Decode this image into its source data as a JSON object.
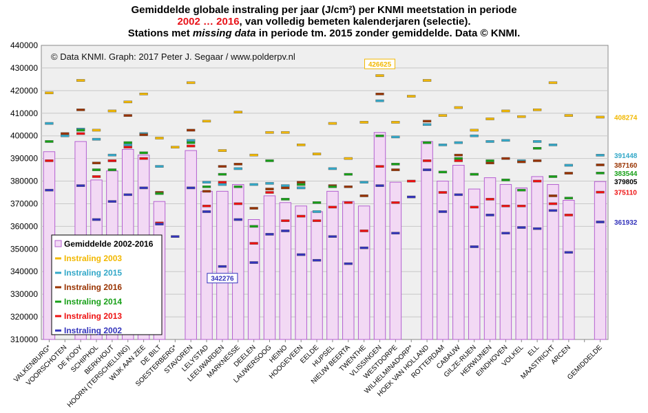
{
  "title": {
    "line1": "Gemiddelde globale instraling per jaar (J/cm²) per KNMI meetstation in periode",
    "line2_years": "2002 … 2016",
    "line2_rest": ", van volledig bemeten kalenderjaren (selectie).",
    "line3_a": "Stations met ",
    "line3_italic": "missing data",
    "line3_b": " in periode tm. 2015 zonder gemiddelde. Data © KNMI."
  },
  "credit": "© Data KNMI. Graph: 2017 Peter J. Segaar / www.polderpv.nl",
  "colors": {
    "avg_fill": "#f2d9f4",
    "avg_edge": "#b45fd0",
    "plot_bg": "#efefef",
    "2003": "#f2b800",
    "2015": "#33a8c8",
    "2016": "#993300",
    "2014": "#18a018",
    "2013": "#ee1111",
    "2002": "#3333bb"
  },
  "chart_data": {
    "type": "bar",
    "ylim": [
      310000,
      440000
    ],
    "yticks": [
      "310000",
      "320000",
      "330000",
      "340000",
      "350000",
      "360000",
      "370000",
      "380000",
      "390000",
      "400000",
      "410000",
      "420000",
      "430000",
      "440000"
    ],
    "categories": [
      "VALKENBURG*",
      "VOORSCHOTEN",
      "DE KOOY",
      "SCHIPHOL",
      "BERKHOUT",
      "HOORN (TERSCHELLING)",
      "WIJK AAN ZEE",
      "DE BILT",
      "SOESTERBERG*",
      "STAVOREN",
      "LELYSTAD",
      "LEEUWARDEN",
      "MARKNESSE",
      "DEELEN",
      "LAUWERSOOG",
      "HEINO",
      "HOOGEVEEN",
      "EELDE",
      "HUPSEL",
      "NIEUW BEERTA",
      "TWENTHE",
      "VLISSINGEN",
      "WESTDORPE",
      "WILHELMINADORP*",
      "HOEK VAN HOLLAND",
      "ROTTERDAM",
      "CABAUW",
      "GILZE-RIJEN",
      "HERWIJNEN",
      "EINDHOVEN",
      "VOLKEL",
      "ELL",
      "MAASTRICHT",
      "ARCEN",
      "",
      "GEMIDDELDE"
    ],
    "series": [
      {
        "name": "Gemiddelde 2002-2016",
        "key": "avg",
        "values": [
          393000,
          null,
          397500,
          380500,
          384500,
          394000,
          391500,
          371000,
          null,
          393500,
          375500,
          375500,
          378500,
          363000,
          373500,
          370500,
          369000,
          366500,
          375500,
          371000,
          369000,
          401500,
          379500,
          null,
          397500,
          380000,
          387000,
          376500,
          381500,
          378500,
          377000,
          382000,
          378500,
          371500,
          null,
          379805
        ]
      },
      {
        "name": "Instraling 2003",
        "key": "2003",
        "values": [
          419000,
          null,
          424500,
          402500,
          411000,
          415000,
          418500,
          399000,
          395000,
          423500,
          406500,
          393500,
          410500,
          391500,
          401500,
          401500,
          396000,
          392000,
          405500,
          390000,
          406000,
          426625,
          406000,
          417500,
          424500,
          409000,
          412500,
          402500,
          407500,
          411000,
          408500,
          411500,
          423500,
          409000,
          null,
          408274
        ]
      },
      {
        "name": "Instraling 2015",
        "key": "2015",
        "values": [
          405500,
          400000,
          403000,
          398500,
          391500,
          396000,
          401000,
          386500,
          null,
          398000,
          379500,
          378500,
          385500,
          378500,
          379000,
          378000,
          377000,
          366500,
          385500,
          null,
          379500,
          415500,
          399500,
          null,
          405000,
          396000,
          397000,
          400000,
          397500,
          398000,
          389000,
          397500,
          396000,
          387000,
          null,
          391448
        ]
      },
      {
        "name": "Instraling 2016",
        "key": "2016",
        "values": [
          null,
          401000,
          411500,
          388000,
          389000,
          409000,
          400500,
          375000,
          null,
          402500,
          375500,
          386500,
          387500,
          368000,
          376500,
          377000,
          379500,
          null,
          378000,
          377500,
          373500,
          418500,
          385000,
          null,
          406500,
          null,
          391500,
          383000,
          388000,
          390000,
          388500,
          389000,
          373500,
          383500,
          null,
          387160
        ]
      },
      {
        "name": "Instraling 2014",
        "key": "2014",
        "values": [
          397500,
          null,
          402500,
          385000,
          385000,
          397000,
          392500,
          374500,
          null,
          397000,
          377500,
          383000,
          377500,
          360000,
          389000,
          372000,
          378500,
          370500,
          377500,
          383000,
          null,
          400000,
          387500,
          null,
          397000,
          384000,
          390000,
          383000,
          389000,
          380500,
          376000,
          394500,
          382000,
          372500,
          null,
          383544
        ]
      },
      {
        "name": "Instraling 2013",
        "key": "2013",
        "values": [
          389000,
          null,
          401000,
          382000,
          389000,
          395000,
          390000,
          361500,
          null,
          395500,
          369000,
          379500,
          370000,
          352500,
          375000,
          362500,
          364500,
          362500,
          368500,
          370500,
          358000,
          386500,
          370500,
          380000,
          389000,
          375000,
          389000,
          368500,
          372000,
          369000,
          369000,
          380000,
          370000,
          365000,
          null,
          375110
        ]
      },
      {
        "name": "Instraling 2002",
        "key": "2002",
        "values": [
          376000,
          null,
          378000,
          363000,
          371000,
          374000,
          377000,
          361000,
          355500,
          377000,
          366500,
          342276,
          363000,
          344000,
          356500,
          358000,
          347500,
          345000,
          355500,
          343500,
          350500,
          378000,
          357000,
          373000,
          385000,
          366500,
          374000,
          351000,
          365000,
          357000,
          359500,
          359000,
          367000,
          348500,
          null,
          361932
        ]
      }
    ],
    "value_labels": [
      {
        "text": "426625",
        "series": "2003",
        "category": "VLISSINGEN"
      },
      {
        "text": "342276",
        "series": "2002",
        "category": "LEEUWARDEN"
      }
    ],
    "right_labels": [
      {
        "text": "408274",
        "key": "2003"
      },
      {
        "text": "391448",
        "key": "2015"
      },
      {
        "text": "387160",
        "key": "2016"
      },
      {
        "text": "383544",
        "key": "2014"
      },
      {
        "text": "379805",
        "key": "avg"
      },
      {
        "text": "375110",
        "key": "2013"
      },
      {
        "text": "361932",
        "key": "2002"
      }
    ],
    "legend_position": "bottom-left",
    "grid": true
  }
}
